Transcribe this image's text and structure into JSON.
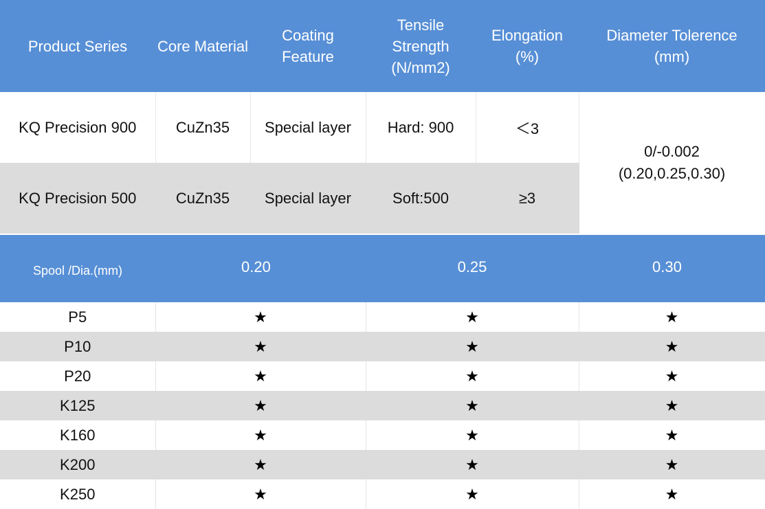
{
  "spec_table": {
    "headers": {
      "product_series": "Product Series",
      "core_material": "Core Material",
      "coating_feature": "Coating Feature",
      "tensile_strength": "Tensile Strength (N/mm2)",
      "elongation": "Elongation (%)",
      "diameter_tolerance": "Diameter Tolerence (mm)"
    },
    "rows": [
      {
        "product_series": "KQ Precision 900",
        "core_material": "CuZn35",
        "coating_feature": "Special layer",
        "tensile_strength": "Hard: 900",
        "elongation": "＜3"
      },
      {
        "product_series": "KQ Precision 500",
        "core_material": "CuZn35",
        "coating_feature": "Special layer",
        "tensile_strength": "Soft:500",
        "elongation": "≥3"
      }
    ],
    "diameter_tolerance": {
      "line1": "0/-0.002",
      "line2": "(0.20,0.25,0.30)"
    }
  },
  "spool_table": {
    "header": {
      "label": "Spool /Dia.(mm)",
      "d1": "0.20",
      "d2": "0.25",
      "d3": "0.30"
    },
    "rows": [
      {
        "spool": "P5",
        "d1": "★",
        "d2": "★",
        "d3": "★"
      },
      {
        "spool": "P10",
        "d1": "★",
        "d2": "★",
        "d3": "★"
      },
      {
        "spool": "P20",
        "d1": "★",
        "d2": "★",
        "d3": "★"
      },
      {
        "spool": "K125",
        "d1": "★",
        "d2": "★",
        "d3": "★"
      },
      {
        "spool": "K160",
        "d1": "★",
        "d2": "★",
        "d3": "★"
      },
      {
        "spool": "K200",
        "d1": "★",
        "d2": "★",
        "d3": "★"
      },
      {
        "spool": "K250",
        "d1": "★",
        "d2": "★",
        "d3": "★"
      }
    ]
  },
  "colors": {
    "header_blue": "#578fd6",
    "row_gray": "#dcdcdc",
    "row_white": "#ffffff"
  }
}
